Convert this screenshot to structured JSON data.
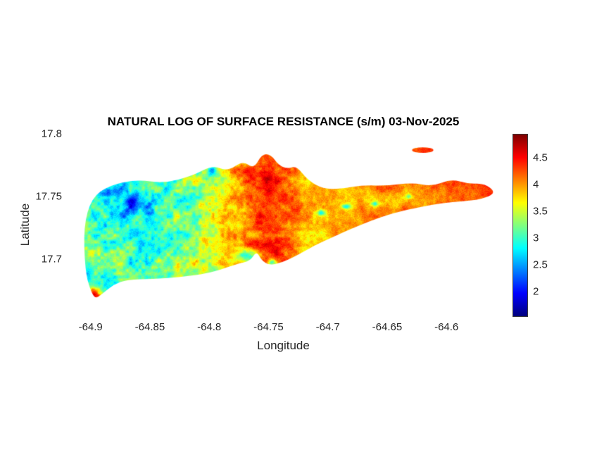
{
  "figure": {
    "background": "#ffffff"
  },
  "chart_data": {
    "type": "heatmap",
    "title": "NATURAL LOG OF SURFACE RESISTANCE (s/m) 03-Nov-2025",
    "xlabel": "Longitude",
    "ylabel": "Latitude",
    "x_range": [
      -64.92,
      -64.555
    ],
    "y_range": [
      17.655,
      17.8
    ],
    "x_ticks": {
      "values": [
        -64.9,
        -64.85,
        -64.8,
        -64.75,
        -64.7,
        -64.65,
        -64.6
      ],
      "labels": [
        "-64.9",
        "-64.85",
        "-64.8",
        "-64.75",
        "-64.7",
        "-64.65",
        "-64.6"
      ]
    },
    "y_ticks": {
      "values": [
        17.7,
        17.75,
        17.8
      ],
      "labels": [
        "17.7",
        "17.75",
        "17.8"
      ]
    },
    "grid": false,
    "colorbar": {
      "colormap": "jet",
      "position": "right",
      "limits": [
        1.55,
        4.95
      ],
      "tick_values": [
        2,
        2.5,
        3,
        3.5,
        4,
        4.5
      ],
      "tick_labels": [
        "2",
        "2.5",
        "3",
        "3.5",
        "4",
        "4.5"
      ]
    },
    "field_summary": {
      "description": "ln(surface resistance) over an east-west elongated island: low values (blue/cyan ~2-3) clustered in the northwest, green/yellow (~3-3.5) over the rest of the west, high values (orange/red ~4-4.7) over the central and eastern half, speckled texture throughout, small red islet off the northeast coast",
      "west_mean": 3.0,
      "central_peak": 4.35,
      "east_mean": 4.15
    },
    "base_profile": {
      "lon": [
        -64.92,
        -64.86,
        -64.82,
        -64.79,
        -64.765,
        -64.745,
        -64.72,
        -64.7,
        -64.665,
        -64.62,
        -64.555
      ],
      "value": [
        3.05,
        2.95,
        3.2,
        3.6,
        4.25,
        4.35,
        3.95,
        3.85,
        4.1,
        4.15,
        4.4
      ]
    },
    "noise_amplitude_profile": {
      "lon": [
        -64.92,
        -64.8,
        -64.78,
        -64.71,
        -64.69,
        -64.555
      ],
      "value": [
        0.7,
        0.68,
        0.45,
        0.42,
        0.3,
        0.3
      ]
    },
    "speckle_jitter": 0.22,
    "hotspots": [
      {
        "lon": -64.862,
        "lat": 17.744,
        "rx": 0.02,
        "ry": 0.01,
        "delta": -0.55
      },
      {
        "lon": -64.885,
        "lat": 17.752,
        "rx": 0.012,
        "ry": 0.006,
        "delta": -0.4
      },
      {
        "lon": -64.83,
        "lat": 17.695,
        "rx": 0.03,
        "ry": 0.009,
        "delta": 0.25
      },
      {
        "lon": -64.897,
        "lat": 17.671,
        "rx": 0.007,
        "ry": 0.005,
        "delta": 1.5
      },
      {
        "lon": -64.768,
        "lat": 17.702,
        "rx": 0.008,
        "ry": 0.005,
        "delta": -1.2
      },
      {
        "lon": -64.747,
        "lat": 17.697,
        "rx": 0.004,
        "ry": 0.003,
        "delta": -1.3
      },
      {
        "lon": -64.798,
        "lat": 17.77,
        "rx": 0.004,
        "ry": 0.003,
        "delta": -0.8
      },
      {
        "lon": -64.705,
        "lat": 17.737,
        "rx": 0.004,
        "ry": 0.0025,
        "delta": -1.0
      },
      {
        "lon": -64.685,
        "lat": 17.742,
        "rx": 0.004,
        "ry": 0.002,
        "delta": -1.0
      },
      {
        "lon": -64.66,
        "lat": 17.744,
        "rx": 0.003,
        "ry": 0.002,
        "delta": -0.9
      },
      {
        "lon": -64.632,
        "lat": 17.75,
        "rx": 0.003,
        "ry": 0.002,
        "delta": -0.8
      },
      {
        "lon": -64.75,
        "lat": 17.76,
        "rx": 0.03,
        "ry": 0.02,
        "delta": 0.15
      },
      {
        "lon": -64.645,
        "lat": 17.748,
        "rx": 0.05,
        "ry": 0.006,
        "delta": -0.3
      },
      {
        "lon": -64.62,
        "lat": 17.787,
        "rx": 0.01,
        "ry": 0.003,
        "delta": 0.3
      }
    ],
    "island_outline": [
      [
        -64.906,
        17.726
      ],
      [
        -64.899,
        17.749
      ],
      [
        -64.884,
        17.759
      ],
      [
        -64.861,
        17.7635
      ],
      [
        -64.838,
        17.7605
      ],
      [
        -64.814,
        17.7665
      ],
      [
        -64.797,
        17.775
      ],
      [
        -64.7845,
        17.77
      ],
      [
        -64.7715,
        17.7785
      ],
      [
        -64.7625,
        17.772
      ],
      [
        -64.7555,
        17.784
      ],
      [
        -64.748,
        17.7835
      ],
      [
        -64.7415,
        17.775
      ],
      [
        -64.7335,
        17.772
      ],
      [
        -64.7265,
        17.7745
      ],
      [
        -64.717,
        17.763
      ],
      [
        -64.704,
        17.756
      ],
      [
        -64.689,
        17.756
      ],
      [
        -64.671,
        17.759
      ],
      [
        -64.65,
        17.7585
      ],
      [
        -64.629,
        17.761
      ],
      [
        -64.612,
        17.758
      ],
      [
        -64.596,
        17.764
      ],
      [
        -64.582,
        17.76
      ],
      [
        -64.568,
        17.7605
      ],
      [
        -64.558,
        17.753
      ],
      [
        -64.57,
        17.7478
      ],
      [
        -64.586,
        17.7462
      ],
      [
        -64.604,
        17.7448
      ],
      [
        -64.623,
        17.7415
      ],
      [
        -64.645,
        17.7368
      ],
      [
        -64.664,
        17.7305
      ],
      [
        -64.681,
        17.724
      ],
      [
        -64.696,
        17.7175
      ],
      [
        -64.711,
        17.711
      ],
      [
        -64.727,
        17.7025
      ],
      [
        -64.739,
        17.6972
      ],
      [
        -64.749,
        17.695
      ],
      [
        -64.756,
        17.699
      ],
      [
        -64.76,
        17.7065
      ],
      [
        -64.7655,
        17.6985
      ],
      [
        -64.776,
        17.6965
      ],
      [
        -64.79,
        17.6915
      ],
      [
        -64.806,
        17.688
      ],
      [
        -64.826,
        17.6855
      ],
      [
        -64.848,
        17.6842
      ],
      [
        -64.869,
        17.6838
      ],
      [
        -64.881,
        17.6795
      ],
      [
        -64.89,
        17.6725
      ],
      [
        -64.896,
        17.668
      ],
      [
        -64.9005,
        17.676
      ],
      [
        -64.9045,
        17.6905
      ]
    ],
    "islets": [
      {
        "lon": -64.62,
        "lat": 17.787,
        "rx": 0.009,
        "ry": 0.0022
      }
    ]
  }
}
